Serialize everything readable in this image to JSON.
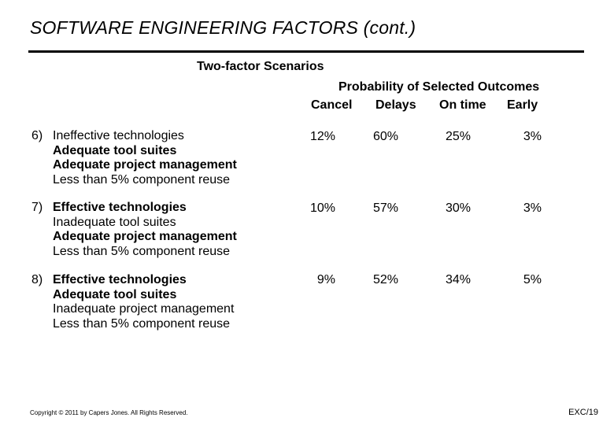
{
  "header": {
    "title": "SOFTWARE ENGINEERING FACTORS (cont.)",
    "subtitle": "Two-factor Scenarios"
  },
  "table": {
    "group_title": "Probability of Selected Outcomes",
    "columns": [
      "Cancel",
      "Delays",
      "On time",
      "Early"
    ],
    "rows": [
      {
        "number": "6)",
        "factors": [
          {
            "text": "Ineffective technologies",
            "bold": false
          },
          {
            "text": "Adequate tool suites",
            "bold": true
          },
          {
            "text": "Adequate project management",
            "bold": true
          },
          {
            "text": "Less than 5% component reuse",
            "bold": false
          }
        ],
        "values": [
          "12%",
          "60%",
          "25%",
          "3%"
        ]
      },
      {
        "number": "7)",
        "factors": [
          {
            "text": "Effective technologies",
            "bold": true
          },
          {
            "text": "Inadequate tool suites",
            "bold": false
          },
          {
            "text": "Adequate project management",
            "bold": true
          },
          {
            "text": "Less than 5% component reuse",
            "bold": false
          }
        ],
        "values": [
          "10%",
          "57%",
          "30%",
          "3%"
        ]
      },
      {
        "number": "8)",
        "factors": [
          {
            "text": "Effective technologies",
            "bold": true
          },
          {
            "text": "Adequate tool suites",
            "bold": true
          },
          {
            "text": "Inadequate project management",
            "bold": false
          },
          {
            "text": "Less than 5% component reuse",
            "bold": false
          }
        ],
        "values": [
          "9%",
          "52%",
          "34%",
          "5%"
        ]
      }
    ]
  },
  "footer": {
    "copyright": "Copyright © 2011 by Capers Jones. All Rights Reserved.",
    "slide_id": "EXC/19"
  }
}
